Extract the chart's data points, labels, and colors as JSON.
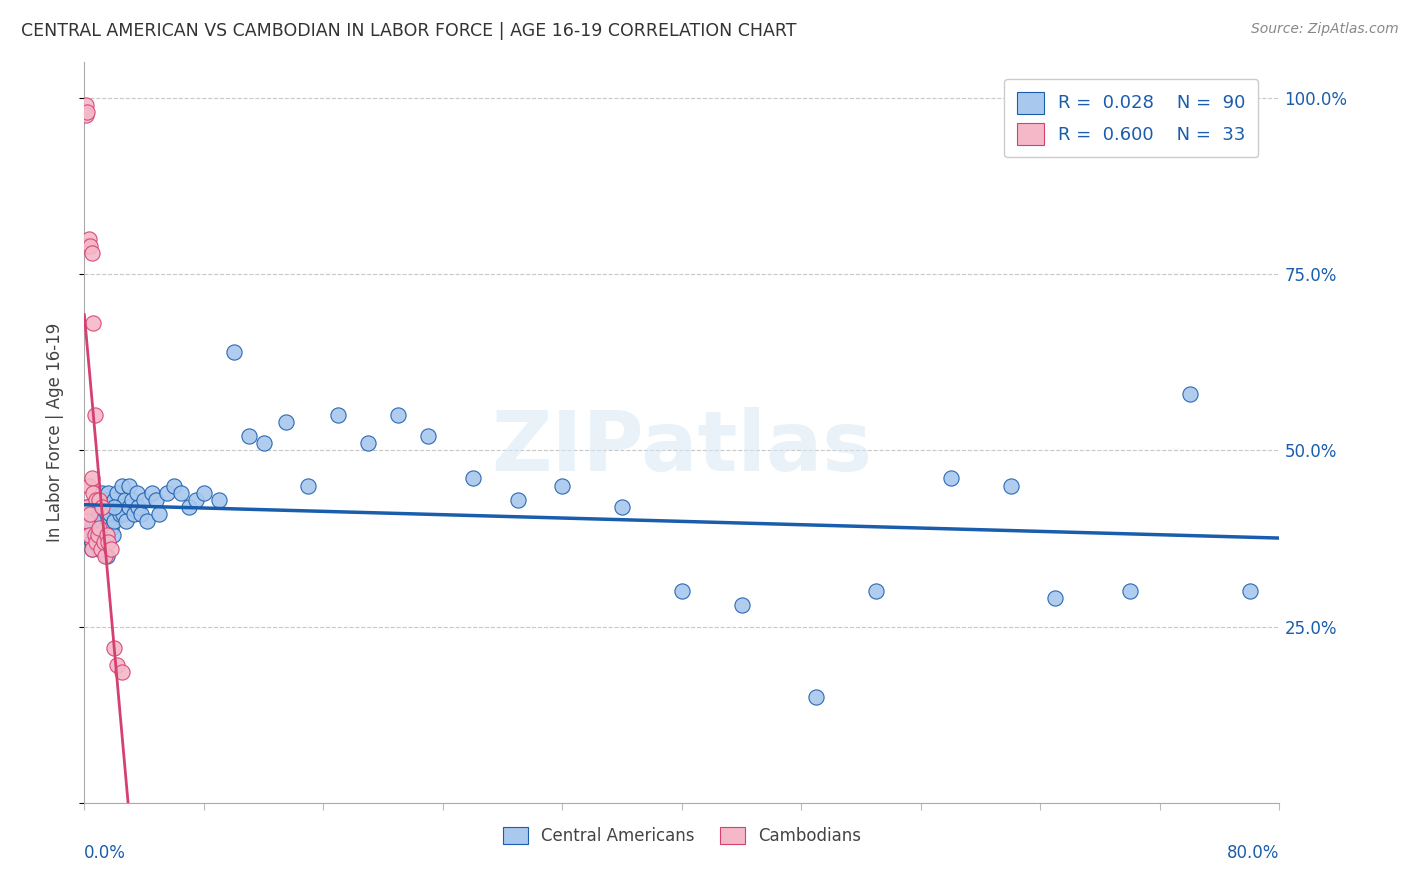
{
  "title": "CENTRAL AMERICAN VS CAMBODIAN IN LABOR FORCE | AGE 16-19 CORRELATION CHART",
  "source": "Source: ZipAtlas.com",
  "ylabel": "In Labor Force | Age 16-19",
  "yticks": [
    0.0,
    0.25,
    0.5,
    0.75,
    1.0
  ],
  "ytick_labels": [
    "",
    "25.0%",
    "50.0%",
    "75.0%",
    "100.0%"
  ],
  "xmin": 0.0,
  "xmax": 0.8,
  "ymin": 0.0,
  "ymax": 1.05,
  "blue_color": "#A8C8EE",
  "pink_color": "#F4B8C8",
  "trendline_blue": "#1A5DAD",
  "trendline_pink": "#D44070",
  "blue_points_x": [
    0.002,
    0.003,
    0.004,
    0.004,
    0.005,
    0.005,
    0.005,
    0.006,
    0.006,
    0.007,
    0.007,
    0.008,
    0.008,
    0.009,
    0.009,
    0.01,
    0.01,
    0.01,
    0.011,
    0.011,
    0.012,
    0.012,
    0.013,
    0.013,
    0.014,
    0.015,
    0.015,
    0.015,
    0.016,
    0.016,
    0.017,
    0.018,
    0.019,
    0.02,
    0.02,
    0.021,
    0.022,
    0.023,
    0.024,
    0.025,
    0.025,
    0.026,
    0.027,
    0.028,
    0.03,
    0.03,
    0.032,
    0.033,
    0.035,
    0.036,
    0.038,
    0.04,
    0.042,
    0.045,
    0.048,
    0.05,
    0.055,
    0.06,
    0.065,
    0.07,
    0.075,
    0.08,
    0.09,
    0.1,
    0.11,
    0.12,
    0.135,
    0.15,
    0.17,
    0.19,
    0.21,
    0.23,
    0.26,
    0.29,
    0.32,
    0.36,
    0.4,
    0.44,
    0.49,
    0.53,
    0.58,
    0.62,
    0.65,
    0.7,
    0.74,
    0.78,
    0.005,
    0.01,
    0.015,
    0.02
  ],
  "blue_points_y": [
    0.42,
    0.4,
    0.41,
    0.38,
    0.39,
    0.37,
    0.36,
    0.42,
    0.4,
    0.41,
    0.38,
    0.4,
    0.37,
    0.42,
    0.39,
    0.43,
    0.41,
    0.38,
    0.42,
    0.39,
    0.44,
    0.4,
    0.42,
    0.38,
    0.39,
    0.43,
    0.41,
    0.38,
    0.44,
    0.4,
    0.41,
    0.39,
    0.38,
    0.43,
    0.4,
    0.42,
    0.44,
    0.42,
    0.41,
    0.45,
    0.42,
    0.41,
    0.43,
    0.4,
    0.45,
    0.42,
    0.43,
    0.41,
    0.44,
    0.42,
    0.41,
    0.43,
    0.4,
    0.44,
    0.43,
    0.41,
    0.44,
    0.45,
    0.44,
    0.42,
    0.43,
    0.44,
    0.43,
    0.64,
    0.52,
    0.51,
    0.54,
    0.45,
    0.55,
    0.51,
    0.55,
    0.52,
    0.46,
    0.43,
    0.45,
    0.42,
    0.3,
    0.28,
    0.15,
    0.3,
    0.46,
    0.45,
    0.29,
    0.3,
    0.58,
    0.3,
    0.37,
    0.36,
    0.35,
    0.42
  ],
  "pink_points_x": [
    0.001,
    0.001,
    0.002,
    0.002,
    0.002,
    0.002,
    0.003,
    0.003,
    0.003,
    0.004,
    0.004,
    0.005,
    0.005,
    0.005,
    0.006,
    0.006,
    0.007,
    0.007,
    0.008,
    0.008,
    0.009,
    0.01,
    0.01,
    0.011,
    0.012,
    0.013,
    0.014,
    0.015,
    0.016,
    0.018,
    0.02,
    0.022,
    0.025
  ],
  "pink_points_y": [
    0.99,
    0.975,
    0.98,
    0.79,
    0.42,
    0.4,
    0.8,
    0.45,
    0.38,
    0.79,
    0.41,
    0.78,
    0.46,
    0.36,
    0.68,
    0.44,
    0.55,
    0.38,
    0.43,
    0.37,
    0.38,
    0.43,
    0.39,
    0.36,
    0.42,
    0.37,
    0.35,
    0.38,
    0.37,
    0.36,
    0.22,
    0.195,
    0.185
  ]
}
